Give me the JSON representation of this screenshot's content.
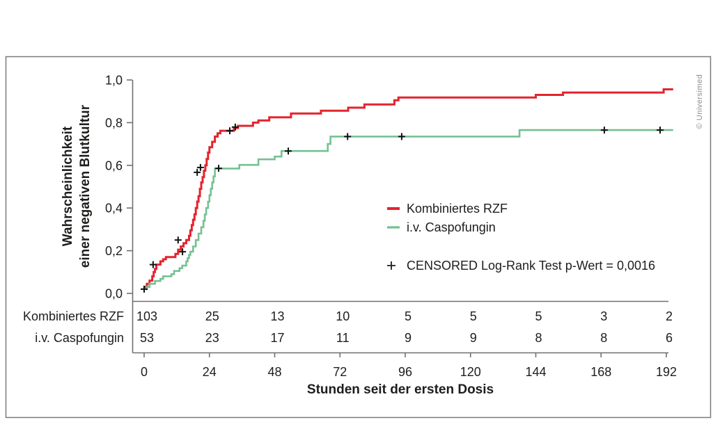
{
  "figure": {
    "copyright": "© Universimed",
    "border_color": "#7a7a7a",
    "axis_color": "#6f6f6f",
    "text_color": "#1d1d1b"
  },
  "chart_data": {
    "type": "line",
    "subtype": "kaplan-meier-step",
    "step": "after",
    "title": "",
    "xlabel": "Stunden seit der ersten Dosis",
    "ylabel_line1": "Wahrscheinlichkeit",
    "ylabel_line2": "einer negativen Blutkultur",
    "xlim": [
      0,
      192
    ],
    "ylim": [
      0.0,
      1.0
    ],
    "grid": false,
    "x_ticks": [
      {
        "value": 0,
        "label": "0"
      },
      {
        "value": 24,
        "label": "24"
      },
      {
        "value": 48,
        "label": "48"
      },
      {
        "value": 72,
        "label": "72"
      },
      {
        "value": 96,
        "label": "96"
      },
      {
        "value": 120,
        "label": "120"
      },
      {
        "value": 144,
        "label": "144"
      },
      {
        "value": 168,
        "label": "168"
      },
      {
        "value": 192,
        "label": "192"
      }
    ],
    "y_ticks": [
      {
        "value": 1.0,
        "label": "1,0"
      },
      {
        "value": 0.8,
        "label": "0,8"
      },
      {
        "value": 0.6,
        "label": "0,6"
      },
      {
        "value": 0.4,
        "label": "0,4"
      },
      {
        "value": 0.2,
        "label": "0,2"
      },
      {
        "value": 0.0,
        "label": "0,0"
      }
    ],
    "legend": {
      "position": "center-right",
      "entries": [
        {
          "label": "Kombiniertes RZF",
          "color": "#e3242e"
        },
        {
          "label": "i.v. Caspofungin",
          "color": "#74c193"
        }
      ],
      "censored_label": "CENSORED Log-Rank Test p-Wert = 0,0016",
      "censored_marker": "+",
      "p_value": "0,0016"
    },
    "series": [
      {
        "name": "Kombiniertes RZF",
        "color": "#e3242e",
        "line_width": 3,
        "end_t": 194.5,
        "steps": [
          [
            0,
            0.03
          ],
          [
            1,
            0.045
          ],
          [
            2,
            0.06
          ],
          [
            3,
            0.08
          ],
          [
            3.5,
            0.1
          ],
          [
            4,
            0.115
          ],
          [
            4.5,
            0.135
          ],
          [
            6,
            0.15
          ],
          [
            7,
            0.16
          ],
          [
            8,
            0.17
          ],
          [
            11.5,
            0.185
          ],
          [
            12.5,
            0.205
          ],
          [
            13.5,
            0.22
          ],
          [
            14.5,
            0.235
          ],
          [
            15.5,
            0.25
          ],
          [
            16.5,
            0.27
          ],
          [
            17,
            0.295
          ],
          [
            17.5,
            0.32
          ],
          [
            18,
            0.345
          ],
          [
            18.5,
            0.37
          ],
          [
            19,
            0.4
          ],
          [
            19.5,
            0.43
          ],
          [
            20,
            0.455
          ],
          [
            20.5,
            0.49
          ],
          [
            21,
            0.52
          ],
          [
            21.5,
            0.545
          ],
          [
            22,
            0.575
          ],
          [
            22.5,
            0.6
          ],
          [
            23,
            0.63
          ],
          [
            23.5,
            0.66
          ],
          [
            24,
            0.685
          ],
          [
            25,
            0.71
          ],
          [
            26,
            0.735
          ],
          [
            27,
            0.75
          ],
          [
            28,
            0.762
          ],
          [
            33,
            0.775
          ],
          [
            34.5,
            0.785
          ],
          [
            40,
            0.8
          ],
          [
            42,
            0.81
          ],
          [
            46,
            0.825
          ],
          [
            54,
            0.843
          ],
          [
            65,
            0.856
          ],
          [
            75,
            0.87
          ],
          [
            81,
            0.885
          ],
          [
            92,
            0.905
          ],
          [
            93.5,
            0.918
          ],
          [
            144,
            0.93
          ],
          [
            154,
            0.941
          ],
          [
            191,
            0.956
          ]
        ],
        "censored": [
          [
            0,
            0.02
          ],
          [
            3.3,
            0.135
          ],
          [
            12.5,
            0.25
          ],
          [
            19.5,
            0.567
          ],
          [
            20.7,
            0.59
          ],
          [
            31.5,
            0.762
          ],
          [
            33.5,
            0.779
          ]
        ]
      },
      {
        "name": "i.v. Caspofungin",
        "color": "#74c193",
        "line_width": 2.6,
        "end_t": 194.5,
        "steps": [
          [
            0,
            0.02
          ],
          [
            1,
            0.03
          ],
          [
            2,
            0.045
          ],
          [
            4,
            0.058
          ],
          [
            6,
            0.068
          ],
          [
            7,
            0.08
          ],
          [
            10,
            0.09
          ],
          [
            11,
            0.105
          ],
          [
            13,
            0.118
          ],
          [
            14,
            0.13
          ],
          [
            15.5,
            0.15
          ],
          [
            16,
            0.165
          ],
          [
            16.5,
            0.18
          ],
          [
            17,
            0.195
          ],
          [
            18,
            0.22
          ],
          [
            19,
            0.25
          ],
          [
            20,
            0.28
          ],
          [
            21,
            0.31
          ],
          [
            21.8,
            0.34
          ],
          [
            22.3,
            0.37
          ],
          [
            22.8,
            0.4
          ],
          [
            23.5,
            0.43
          ],
          [
            24,
            0.46
          ],
          [
            24.5,
            0.49
          ],
          [
            25,
            0.52
          ],
          [
            25.5,
            0.548
          ],
          [
            26,
            0.585
          ],
          [
            35,
            0.602
          ],
          [
            42,
            0.628
          ],
          [
            48,
            0.641
          ],
          [
            50.5,
            0.667
          ],
          [
            67.5,
            0.7
          ],
          [
            68.5,
            0.735
          ],
          [
            138,
            0.765
          ]
        ],
        "censored": [
          [
            14.1,
            0.195
          ],
          [
            27.4,
            0.586
          ],
          [
            53,
            0.667
          ],
          [
            74.8,
            0.735
          ],
          [
            94.7,
            0.735
          ],
          [
            169.2,
            0.765
          ],
          [
            189.7,
            0.765
          ]
        ]
      }
    ],
    "risk_table": {
      "times": [
        0,
        24,
        48,
        72,
        96,
        120,
        144,
        168,
        192
      ],
      "rows": [
        {
          "label": "Kombiniertes RZF",
          "color": "#e3242e",
          "values": [
            "103",
            "25",
            "13",
            "10",
            "5",
            "5",
            "5",
            "3",
            "2"
          ]
        },
        {
          "label": "i.v. Caspofungin",
          "color": "#74c193",
          "values": [
            "53",
            "23",
            "17",
            "11",
            "9",
            "9",
            "8",
            "8",
            "6"
          ]
        }
      ]
    }
  }
}
